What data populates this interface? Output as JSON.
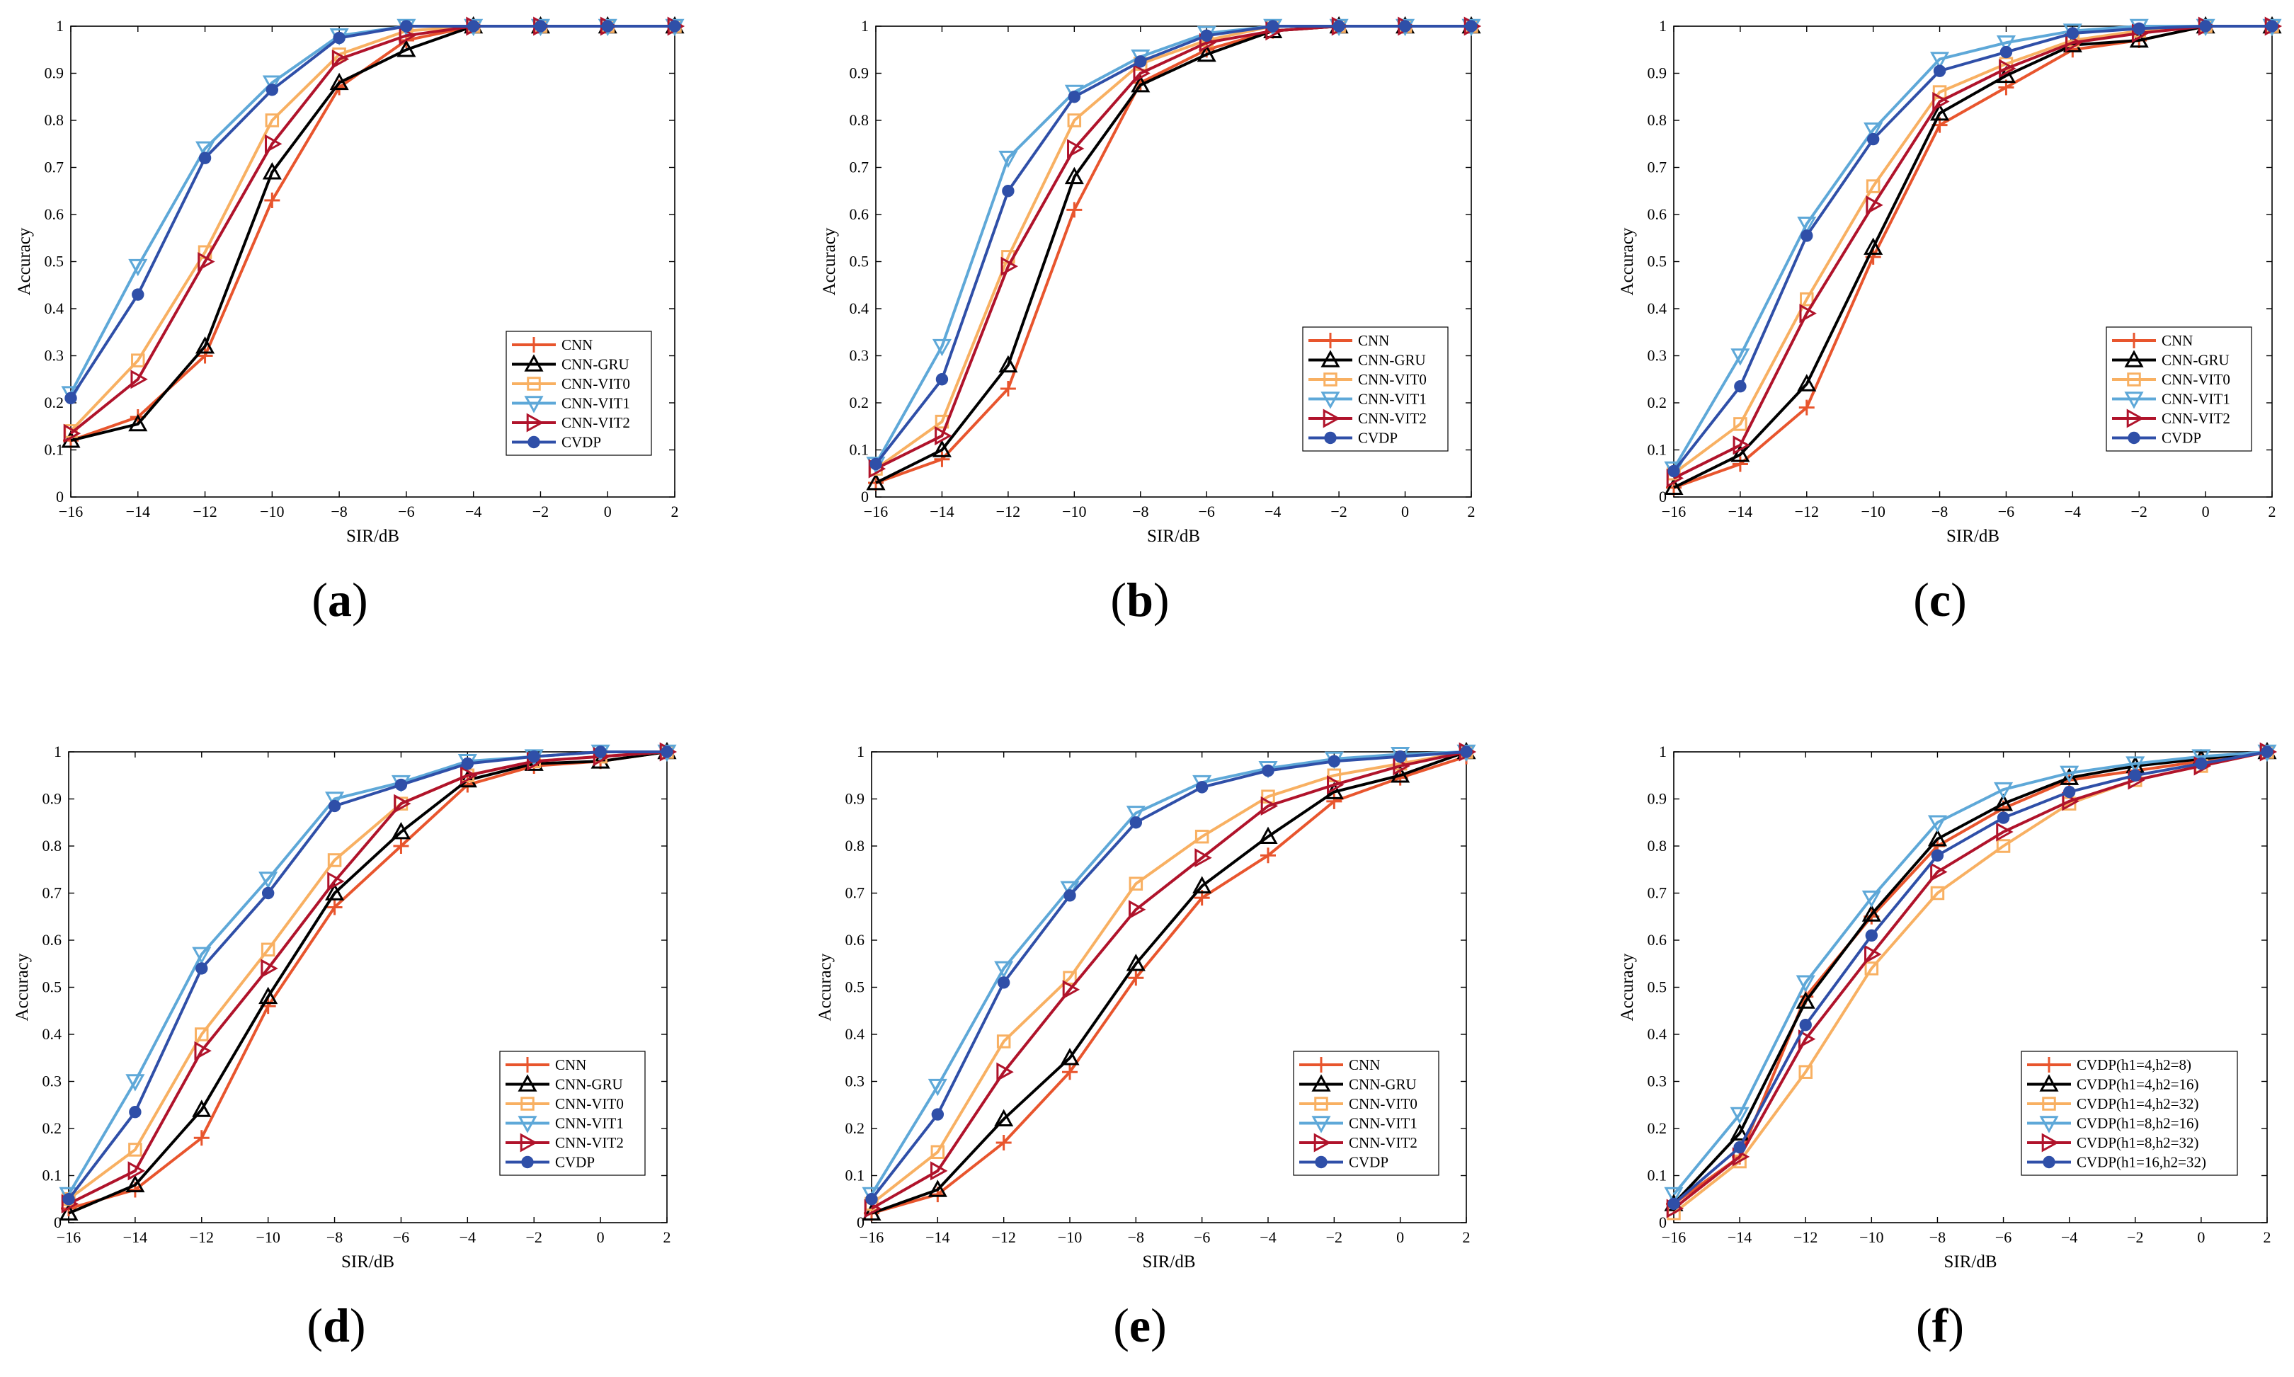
{
  "chart_data": [
    {
      "panel": "(a)",
      "type": "line",
      "xlabel": "SIR/dB",
      "ylabel": "Accuracy",
      "xlim": [
        -16,
        2
      ],
      "ylim": [
        0,
        1
      ],
      "x": [
        -16,
        -14,
        -12,
        -10,
        -8,
        -6,
        -4,
        -2,
        0,
        2
      ],
      "xticks": [
        "−16",
        "−14",
        "−12",
        "−10",
        "−8",
        "−6",
        "−4",
        "−2",
        "0",
        "2"
      ],
      "yticks": [
        "0",
        "0.1",
        "0.2",
        "0.3",
        "0.4",
        "0.5",
        "0.6",
        "0.7",
        "0.8",
        "0.9",
        "1"
      ],
      "legend_position": "lower-right",
      "series": [
        {
          "name": "CNN",
          "color": "#e8552d",
          "marker": "plus",
          "values": [
            0.12,
            0.17,
            0.3,
            0.63,
            0.87,
            0.97,
            1.0,
            1.0,
            1.0,
            1.0
          ]
        },
        {
          "name": "CNN-GRU",
          "color": "#000000",
          "marker": "triangle-up",
          "values": [
            0.12,
            0.155,
            0.32,
            0.69,
            0.88,
            0.95,
            1.0,
            1.0,
            1.0,
            1.0
          ]
        },
        {
          "name": "CNN-VIT0",
          "color": "#f8b062",
          "marker": "square",
          "values": [
            0.14,
            0.29,
            0.52,
            0.8,
            0.94,
            0.99,
            1.0,
            1.0,
            1.0,
            1.0
          ]
        },
        {
          "name": "CNN-VIT1",
          "color": "#5ea8d8",
          "marker": "triangle-down",
          "values": [
            0.22,
            0.49,
            0.74,
            0.88,
            0.98,
            1.0,
            1.0,
            1.0,
            1.0,
            1.0
          ]
        },
        {
          "name": "CNN-VIT2",
          "color": "#b0132b",
          "marker": "triangle-right",
          "values": [
            0.135,
            0.25,
            0.5,
            0.75,
            0.93,
            0.98,
            1.0,
            1.0,
            1.0,
            1.0
          ]
        },
        {
          "name": "CVDP",
          "color": "#2f4fa8",
          "marker": "circle",
          "values": [
            0.21,
            0.43,
            0.72,
            0.865,
            0.975,
            1.0,
            1.0,
            1.0,
            1.0,
            1.0
          ]
        }
      ]
    },
    {
      "panel": "(b)",
      "type": "line",
      "xlabel": "SIR/dB",
      "ylabel": "Accuracy",
      "xlim": [
        -16,
        2
      ],
      "ylim": [
        0,
        1
      ],
      "x": [
        -16,
        -14,
        -12,
        -10,
        -8,
        -6,
        -4,
        -2,
        0,
        2
      ],
      "xticks": [
        "−16",
        "−14",
        "−12",
        "−10",
        "−8",
        "−6",
        "−4",
        "−2",
        "0",
        "2"
      ],
      "yticks": [
        "0",
        "0.1",
        "0.2",
        "0.3",
        "0.4",
        "0.5",
        "0.6",
        "0.7",
        "0.8",
        "0.9",
        "1"
      ],
      "legend_position": "lower-right",
      "series": [
        {
          "name": "CNN",
          "color": "#e8552d",
          "marker": "plus",
          "values": [
            0.03,
            0.08,
            0.23,
            0.61,
            0.88,
            0.95,
            0.99,
            1.0,
            1.0,
            1.0
          ]
        },
        {
          "name": "CNN-GRU",
          "color": "#000000",
          "marker": "triangle-up",
          "values": [
            0.03,
            0.1,
            0.28,
            0.68,
            0.875,
            0.94,
            0.99,
            1.0,
            1.0,
            1.0
          ]
        },
        {
          "name": "CNN-VIT0",
          "color": "#f8b062",
          "marker": "square",
          "values": [
            0.06,
            0.16,
            0.51,
            0.8,
            0.92,
            0.97,
            1.0,
            1.0,
            1.0,
            1.0
          ]
        },
        {
          "name": "CNN-VIT1",
          "color": "#5ea8d8",
          "marker": "triangle-down",
          "values": [
            0.07,
            0.32,
            0.72,
            0.86,
            0.935,
            0.985,
            1.0,
            1.0,
            1.0,
            1.0
          ]
        },
        {
          "name": "CNN-VIT2",
          "color": "#b0132b",
          "marker": "triangle-right",
          "values": [
            0.06,
            0.13,
            0.49,
            0.74,
            0.9,
            0.965,
            0.99,
            1.0,
            1.0,
            1.0
          ]
        },
        {
          "name": "CVDP",
          "color": "#2f4fa8",
          "marker": "circle",
          "values": [
            0.07,
            0.25,
            0.65,
            0.85,
            0.925,
            0.98,
            1.0,
            1.0,
            1.0,
            1.0
          ]
        }
      ]
    },
    {
      "panel": "(c)",
      "type": "line",
      "xlabel": "SIR/dB",
      "ylabel": "Accuracy",
      "xlim": [
        -16,
        2
      ],
      "ylim": [
        0,
        1
      ],
      "x": [
        -16,
        -14,
        -12,
        -10,
        -8,
        -6,
        -4,
        -2,
        0,
        2
      ],
      "xticks": [
        "−16",
        "−14",
        "−12",
        "−10",
        "−8",
        "−6",
        "−4",
        "−2",
        "0",
        "2"
      ],
      "yticks": [
        "0",
        "0.1",
        "0.2",
        "0.3",
        "0.4",
        "0.5",
        "0.6",
        "0.7",
        "0.8",
        "0.9",
        "1"
      ],
      "legend_position": "lower-right",
      "series": [
        {
          "name": "CNN",
          "color": "#e8552d",
          "marker": "plus",
          "values": [
            0.02,
            0.07,
            0.19,
            0.51,
            0.79,
            0.87,
            0.95,
            0.97,
            1.0,
            1.0
          ]
        },
        {
          "name": "CNN-GRU",
          "color": "#000000",
          "marker": "triangle-up",
          "values": [
            0.02,
            0.09,
            0.24,
            0.53,
            0.815,
            0.895,
            0.96,
            0.97,
            1.0,
            1.0
          ]
        },
        {
          "name": "CNN-VIT0",
          "color": "#f8b062",
          "marker": "square",
          "values": [
            0.05,
            0.155,
            0.42,
            0.66,
            0.86,
            0.92,
            0.97,
            0.99,
            1.0,
            1.0
          ]
        },
        {
          "name": "CNN-VIT1",
          "color": "#5ea8d8",
          "marker": "triangle-down",
          "values": [
            0.06,
            0.3,
            0.58,
            0.78,
            0.93,
            0.965,
            0.99,
            1.0,
            1.0,
            1.0
          ]
        },
        {
          "name": "CNN-VIT2",
          "color": "#b0132b",
          "marker": "triangle-right",
          "values": [
            0.04,
            0.11,
            0.39,
            0.62,
            0.84,
            0.91,
            0.965,
            0.985,
            1.0,
            1.0
          ]
        },
        {
          "name": "CVDP",
          "color": "#2f4fa8",
          "marker": "circle",
          "values": [
            0.055,
            0.235,
            0.555,
            0.76,
            0.905,
            0.945,
            0.985,
            0.995,
            1.0,
            1.0
          ]
        }
      ]
    },
    {
      "panel": "(d)",
      "type": "line",
      "xlabel": "SIR/dB",
      "ylabel": "Accuracy",
      "xlim": [
        -16,
        2
      ],
      "ylim": [
        0,
        1
      ],
      "x": [
        -16,
        -14,
        -12,
        -10,
        -8,
        -6,
        -4,
        -2,
        0,
        2
      ],
      "xticks": [
        "−16",
        "−14",
        "−12",
        "−10",
        "−8",
        "−6",
        "−4",
        "−2",
        "0",
        "2"
      ],
      "yticks": [
        "0",
        "0.1",
        "0.2",
        "0.3",
        "0.4",
        "0.5",
        "0.6",
        "0.7",
        "0.8",
        "0.9",
        "1"
      ],
      "legend_position": "lower-right",
      "series": [
        {
          "name": "CNN",
          "color": "#e8552d",
          "marker": "plus",
          "values": [
            0.03,
            0.07,
            0.18,
            0.46,
            0.67,
            0.8,
            0.93,
            0.97,
            0.98,
            1.0
          ]
        },
        {
          "name": "CNN-GRU",
          "color": "#000000",
          "marker": "triangle-up",
          "values": [
            0.02,
            0.08,
            0.24,
            0.48,
            0.7,
            0.83,
            0.94,
            0.975,
            0.98,
            1.0
          ]
        },
        {
          "name": "CNN-VIT0",
          "color": "#f8b062",
          "marker": "square",
          "values": [
            0.05,
            0.155,
            0.4,
            0.58,
            0.77,
            0.89,
            0.95,
            0.98,
            0.99,
            1.0
          ]
        },
        {
          "name": "CNN-VIT1",
          "color": "#5ea8d8",
          "marker": "triangle-down",
          "values": [
            0.06,
            0.3,
            0.57,
            0.73,
            0.9,
            0.935,
            0.98,
            0.99,
            1.0,
            1.0
          ]
        },
        {
          "name": "CNN-VIT2",
          "color": "#b0132b",
          "marker": "triangle-right",
          "values": [
            0.04,
            0.11,
            0.365,
            0.54,
            0.725,
            0.89,
            0.95,
            0.98,
            0.99,
            1.0
          ]
        },
        {
          "name": "CVDP",
          "color": "#2f4fa8",
          "marker": "circle",
          "values": [
            0.05,
            0.235,
            0.54,
            0.7,
            0.885,
            0.93,
            0.975,
            0.99,
            1.0,
            1.0
          ]
        }
      ]
    },
    {
      "panel": "(e)",
      "type": "line",
      "xlabel": "SIR/dB",
      "ylabel": "Accuracy",
      "xlim": [
        -16,
        2
      ],
      "ylim": [
        0,
        1
      ],
      "x": [
        -16,
        -14,
        -12,
        -10,
        -8,
        -6,
        -4,
        -2,
        0,
        2
      ],
      "xticks": [
        "−16",
        "−14",
        "−12",
        "−10",
        "−8",
        "−6",
        "−4",
        "−2",
        "0",
        "2"
      ],
      "yticks": [
        "0",
        "0.1",
        "0.2",
        "0.3",
        "0.4",
        "0.5",
        "0.6",
        "0.7",
        "0.8",
        "0.9",
        "1"
      ],
      "legend_position": "lower-right",
      "series": [
        {
          "name": "CNN",
          "color": "#e8552d",
          "marker": "plus",
          "values": [
            0.02,
            0.06,
            0.17,
            0.32,
            0.52,
            0.69,
            0.78,
            0.895,
            0.945,
            0.99
          ]
        },
        {
          "name": "CNN-GRU",
          "color": "#000000",
          "marker": "triangle-up",
          "values": [
            0.02,
            0.07,
            0.22,
            0.35,
            0.55,
            0.715,
            0.82,
            0.915,
            0.95,
            1.0
          ]
        },
        {
          "name": "CNN-VIT0",
          "color": "#f8b062",
          "marker": "square",
          "values": [
            0.04,
            0.15,
            0.385,
            0.52,
            0.72,
            0.82,
            0.905,
            0.95,
            0.975,
            1.0
          ]
        },
        {
          "name": "CNN-VIT1",
          "color": "#5ea8d8",
          "marker": "triangle-down",
          "values": [
            0.06,
            0.29,
            0.54,
            0.71,
            0.87,
            0.935,
            0.965,
            0.985,
            0.995,
            1.0
          ]
        },
        {
          "name": "CNN-VIT2",
          "color": "#b0132b",
          "marker": "triangle-right",
          "values": [
            0.03,
            0.11,
            0.32,
            0.495,
            0.665,
            0.775,
            0.885,
            0.93,
            0.97,
            1.0
          ]
        },
        {
          "name": "CVDP",
          "color": "#2f4fa8",
          "marker": "circle",
          "values": [
            0.05,
            0.23,
            0.51,
            0.695,
            0.85,
            0.925,
            0.96,
            0.98,
            0.99,
            1.0
          ]
        }
      ]
    },
    {
      "panel": "(f)",
      "type": "line",
      "xlabel": "SIR/dB",
      "ylabel": "Accuracy",
      "xlim": [
        -16,
        2
      ],
      "ylim": [
        0,
        1
      ],
      "x": [
        -16,
        -14,
        -12,
        -10,
        -8,
        -6,
        -4,
        -2,
        0,
        2
      ],
      "xticks": [
        "−16",
        "−14",
        "−12",
        "−10",
        "−8",
        "−6",
        "−4",
        "−2",
        "0",
        "2"
      ],
      "yticks": [
        "0",
        "0.1",
        "0.2",
        "0.3",
        "0.4",
        "0.5",
        "0.6",
        "0.7",
        "0.8",
        "0.9",
        "1"
      ],
      "legend_position": "lower-right",
      "series": [
        {
          "name": "CVDP(h1=4,h2=8)",
          "color": "#e8552d",
          "marker": "plus",
          "values": [
            0.04,
            0.14,
            0.48,
            0.65,
            0.8,
            0.88,
            0.94,
            0.96,
            0.98,
            1.0
          ]
        },
        {
          "name": "CVDP(h1=4,h2=16)",
          "color": "#000000",
          "marker": "triangle-up",
          "values": [
            0.04,
            0.19,
            0.47,
            0.655,
            0.815,
            0.89,
            0.945,
            0.97,
            0.985,
            1.0
          ]
        },
        {
          "name": "CVDP(h1=4,h2=32)",
          "color": "#f8b062",
          "marker": "square",
          "values": [
            0.02,
            0.13,
            0.32,
            0.54,
            0.7,
            0.8,
            0.89,
            0.94,
            0.97,
            1.0
          ]
        },
        {
          "name": "CVDP(h1=8,h2=16)",
          "color": "#5ea8d8",
          "marker": "triangle-down",
          "values": [
            0.06,
            0.23,
            0.51,
            0.69,
            0.85,
            0.92,
            0.955,
            0.975,
            0.99,
            1.0
          ]
        },
        {
          "name": "CVDP(h1=8,h2=32)",
          "color": "#b0132b",
          "marker": "triangle-right",
          "values": [
            0.03,
            0.14,
            0.39,
            0.57,
            0.745,
            0.83,
            0.895,
            0.94,
            0.97,
            1.0
          ]
        },
        {
          "name": "CVDP(h1=16,h2=32)",
          "color": "#2f4fa8",
          "marker": "circle",
          "values": [
            0.04,
            0.16,
            0.42,
            0.61,
            0.78,
            0.86,
            0.915,
            0.95,
            0.975,
            1.0
          ]
        }
      ]
    }
  ]
}
